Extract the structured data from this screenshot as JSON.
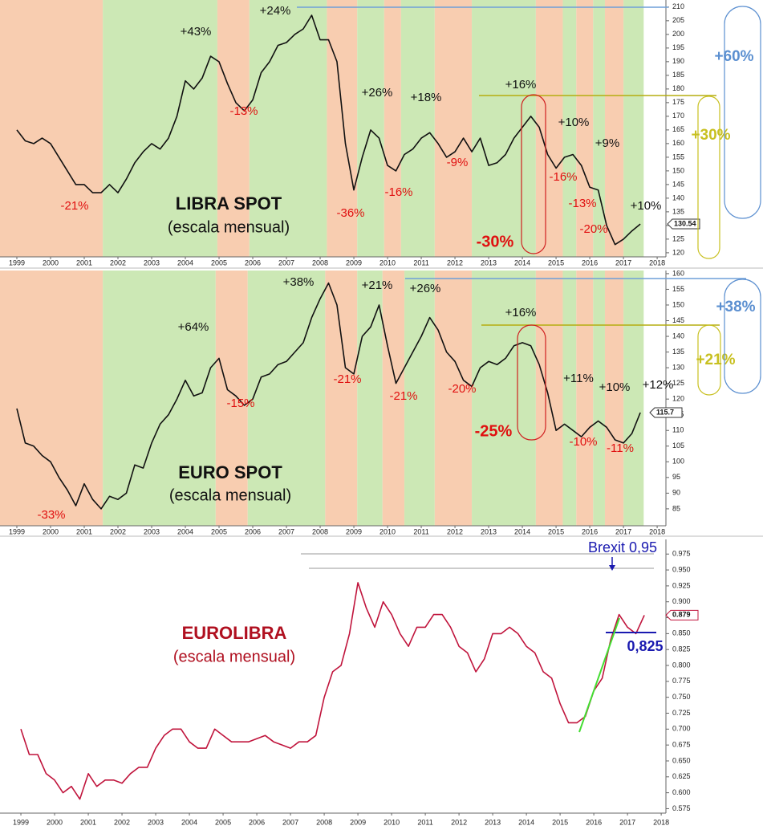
{
  "chart_data": [
    {
      "type": "line",
      "title": "LIBRA SPOT",
      "subtitle": "(escala mensual)",
      "x": [
        1999,
        1999.25,
        1999.5,
        1999.75,
        2000,
        2000.25,
        2000.5,
        2000.75,
        2001,
        2001.25,
        2001.5,
        2001.75,
        2002,
        2002.25,
        2002.5,
        2002.75,
        2003,
        2003.25,
        2003.5,
        2003.75,
        2004,
        2004.25,
        2004.5,
        2004.75,
        2005,
        2005.25,
        2005.5,
        2005.75,
        2006,
        2006.25,
        2006.5,
        2006.75,
        2007,
        2007.25,
        2007.5,
        2007.75,
        2008,
        2008.25,
        2008.5,
        2008.75,
        2009,
        2009.25,
        2009.5,
        2009.75,
        2010,
        2010.25,
        2010.5,
        2010.75,
        2011,
        2011.25,
        2011.5,
        2011.75,
        2012,
        2012.25,
        2012.5,
        2012.75,
        2013,
        2013.25,
        2013.5,
        2013.75,
        2014,
        2014.25,
        2014.5,
        2014.75,
        2015,
        2015.25,
        2015.5,
        2015.75,
        2016,
        2016.25,
        2016.5,
        2016.75,
        2017,
        2017.25,
        2017.5
      ],
      "series": [
        {
          "color": "#111111",
          "values": [
            165,
            161,
            160,
            162,
            160,
            155,
            150,
            145,
            145,
            142,
            142,
            145,
            142,
            147,
            153,
            157,
            160,
            158,
            162,
            170,
            183,
            180,
            184,
            192,
            190,
            182,
            175,
            172,
            176,
            186,
            190,
            196,
            197,
            200,
            202,
            207,
            198,
            198,
            190,
            160,
            143,
            155,
            165,
            162,
            152,
            150,
            156,
            158,
            162,
            164,
            160,
            155,
            157,
            162,
            157,
            162,
            152,
            153,
            156,
            162,
            166,
            170,
            166,
            156,
            151,
            155,
            156,
            152,
            144,
            143,
            130,
            123,
            125,
            128,
            130.54
          ]
        }
      ],
      "regions": [
        {
          "from": 1998.5,
          "to": 2001.55,
          "color": "#f8cdb0"
        },
        {
          "from": 2001.55,
          "to": 2004.95,
          "color": "#cce8b5"
        },
        {
          "from": 2004.95,
          "to": 2005.9,
          "color": "#f8cdb0"
        },
        {
          "from": 2005.9,
          "to": 2008.2,
          "color": "#cce8b5"
        },
        {
          "from": 2008.2,
          "to": 2009.1,
          "color": "#f8cdb0"
        },
        {
          "from": 2009.1,
          "to": 2009.9,
          "color": "#cce8b5"
        },
        {
          "from": 2009.9,
          "to": 2010.4,
          "color": "#f8cdb0"
        },
        {
          "from": 2010.4,
          "to": 2011.4,
          "color": "#cce8b5"
        },
        {
          "from": 2011.4,
          "to": 2012.5,
          "color": "#f8cdb0"
        },
        {
          "from": 2012.5,
          "to": 2014.4,
          "color": "#cce8b5"
        },
        {
          "from": 2014.4,
          "to": 2015.2,
          "color": "#f8cdb0"
        },
        {
          "from": 2015.2,
          "to": 2015.6,
          "color": "#cce8b5"
        },
        {
          "from": 2015.6,
          "to": 2016.1,
          "color": "#f8cdb0"
        },
        {
          "from": 2016.1,
          "to": 2016.45,
          "color": "#cce8b5"
        },
        {
          "from": 2016.45,
          "to": 2017.0,
          "color": "#f8cdb0"
        },
        {
          "from": 2017.0,
          "to": 2017.6,
          "color": "#cce8b5"
        }
      ],
      "xlim": [
        1998.5,
        2018.26
      ],
      "xticks": [
        1999,
        2000,
        2001,
        2002,
        2003,
        2004,
        2005,
        2006,
        2007,
        2008,
        2009,
        2010,
        2011,
        2012,
        2013,
        2014,
        2015,
        2016,
        2017,
        2018
      ],
      "ylim": [
        118.5,
        212.6
      ],
      "yticks": [
        120,
        125,
        130,
        135,
        140,
        145,
        150,
        155,
        160,
        165,
        170,
        175,
        180,
        185,
        190,
        195,
        200,
        205,
        210
      ],
      "annotations": [
        "+24%",
        "+43%",
        "-13%",
        "-21%",
        "-36%",
        "+26%",
        "+18%",
        "-16%",
        "-9%",
        "+16%",
        "-30%",
        "+10%",
        "-16%",
        "+9%",
        "-13%",
        "-20%",
        "+10%",
        "+60%",
        "+30%"
      ]
    },
    {
      "type": "line",
      "title": "EURO SPOT",
      "subtitle": "(escala mensual)",
      "x": [
        1999,
        1999.25,
        1999.5,
        1999.75,
        2000,
        2000.25,
        2000.5,
        2000.75,
        2001,
        2001.25,
        2001.5,
        2001.75,
        2002,
        2002.25,
        2002.5,
        2002.75,
        2003,
        2003.25,
        2003.5,
        2003.75,
        2004,
        2004.25,
        2004.5,
        2004.75,
        2005,
        2005.25,
        2005.5,
        2005.75,
        2006,
        2006.25,
        2006.5,
        2006.75,
        2007,
        2007.25,
        2007.5,
        2007.75,
        2008,
        2008.25,
        2008.5,
        2008.75,
        2009,
        2009.25,
        2009.5,
        2009.75,
        2010,
        2010.25,
        2010.5,
        2010.75,
        2011,
        2011.25,
        2011.5,
        2011.75,
        2012,
        2012.25,
        2012.5,
        2012.75,
        2013,
        2013.25,
        2013.5,
        2013.75,
        2014,
        2014.25,
        2014.5,
        2014.75,
        2015,
        2015.25,
        2015.5,
        2015.75,
        2016,
        2016.25,
        2016.5,
        2016.75,
        2017,
        2017.25,
        2017.5
      ],
      "series": [
        {
          "color": "#111111",
          "values": [
            117,
            106,
            105,
            102,
            100,
            95,
            91,
            86,
            93,
            88,
            85,
            89,
            88,
            90,
            99,
            98,
            106,
            112,
            115,
            120,
            126,
            121,
            122,
            130,
            133,
            123,
            121,
            118,
            120,
            127,
            128,
            131,
            132,
            135,
            138,
            146,
            152,
            157,
            150,
            130,
            128,
            140,
            143,
            150,
            137,
            125,
            130,
            135,
            140,
            146,
            142,
            135,
            132,
            126,
            124,
            130,
            132,
            131,
            133,
            137,
            138,
            137,
            131,
            122,
            110,
            112,
            110,
            108,
            111,
            113,
            111,
            107,
            106,
            109,
            115.7
          ]
        }
      ],
      "regions": [
        {
          "from": 1998.5,
          "to": 2001.55,
          "color": "#f8cdb0"
        },
        {
          "from": 2001.55,
          "to": 2004.9,
          "color": "#cce8b5"
        },
        {
          "from": 2004.9,
          "to": 2005.85,
          "color": "#f8cdb0"
        },
        {
          "from": 2005.85,
          "to": 2008.15,
          "color": "#cce8b5"
        },
        {
          "from": 2008.15,
          "to": 2009.1,
          "color": "#f8cdb0"
        },
        {
          "from": 2009.1,
          "to": 2009.85,
          "color": "#cce8b5"
        },
        {
          "from": 2009.85,
          "to": 2010.5,
          "color": "#f8cdb0"
        },
        {
          "from": 2010.5,
          "to": 2011.4,
          "color": "#cce8b5"
        },
        {
          "from": 2011.4,
          "to": 2012.5,
          "color": "#f8cdb0"
        },
        {
          "from": 2012.5,
          "to": 2014.4,
          "color": "#cce8b5"
        },
        {
          "from": 2014.4,
          "to": 2015.2,
          "color": "#f8cdb0"
        },
        {
          "from": 2015.2,
          "to": 2015.6,
          "color": "#cce8b5"
        },
        {
          "from": 2015.6,
          "to": 2016.1,
          "color": "#f8cdb0"
        },
        {
          "from": 2016.1,
          "to": 2016.45,
          "color": "#cce8b5"
        },
        {
          "from": 2016.45,
          "to": 2017.0,
          "color": "#f8cdb0"
        },
        {
          "from": 2017.0,
          "to": 2017.6,
          "color": "#cce8b5"
        }
      ],
      "xlim": [
        1998.5,
        2018.26
      ],
      "xticks": [
        1999,
        2000,
        2001,
        2002,
        2003,
        2004,
        2005,
        2006,
        2007,
        2008,
        2009,
        2010,
        2011,
        2012,
        2013,
        2014,
        2015,
        2016,
        2017,
        2018
      ],
      "ylim": [
        79.6,
        161
      ],
      "yticks": [
        85,
        90,
        95,
        100,
        105,
        110,
        115,
        120,
        125,
        130,
        135,
        140,
        145,
        150,
        155,
        160
      ],
      "annotations": [
        "+38%",
        "+21%",
        "+26%",
        "+64%",
        "-15%",
        "-33%",
        "-21%",
        "-21%",
        "-20%",
        "+16%",
        "-25%",
        "+11%",
        "+10%",
        "-10%",
        "-11%",
        "+12%",
        "+38%",
        "+21%"
      ]
    },
    {
      "type": "line",
      "title": "EUROLIBRA",
      "subtitle": "(escala mensual)",
      "x": [
        1999,
        1999.25,
        1999.5,
        1999.75,
        2000,
        2000.25,
        2000.5,
        2000.75,
        2001,
        2001.25,
        2001.5,
        2001.75,
        2002,
        2002.25,
        2002.5,
        2002.75,
        2003,
        2003.25,
        2003.5,
        2003.75,
        2004,
        2004.25,
        2004.5,
        2004.75,
        2005,
        2005.25,
        2005.5,
        2005.75,
        2006,
        2006.25,
        2006.5,
        2006.75,
        2007,
        2007.25,
        2007.5,
        2007.75,
        2008,
        2008.25,
        2008.5,
        2008.75,
        2009,
        2009.25,
        2009.5,
        2009.75,
        2010,
        2010.25,
        2010.5,
        2010.75,
        2011,
        2011.25,
        2011.5,
        2011.75,
        2012,
        2012.25,
        2012.5,
        2012.75,
        2013,
        2013.25,
        2013.5,
        2013.75,
        2014,
        2014.25,
        2014.5,
        2014.75,
        2015,
        2015.25,
        2015.5,
        2015.75,
        2016,
        2016.25,
        2016.5,
        2016.75,
        2017,
        2017.25,
        2017.5
      ],
      "series": [
        {
          "color": "#c0143c",
          "values": [
            0.7,
            0.66,
            0.66,
            0.63,
            0.62,
            0.6,
            0.61,
            0.59,
            0.63,
            0.61,
            0.62,
            0.62,
            0.615,
            0.63,
            0.64,
            0.64,
            0.67,
            0.69,
            0.7,
            0.7,
            0.68,
            0.67,
            0.67,
            0.7,
            0.69,
            0.68,
            0.68,
            0.68,
            0.685,
            0.69,
            0.68,
            0.675,
            0.67,
            0.68,
            0.68,
            0.69,
            0.75,
            0.79,
            0.8,
            0.85,
            0.93,
            0.89,
            0.86,
            0.9,
            0.88,
            0.85,
            0.83,
            0.86,
            0.86,
            0.88,
            0.88,
            0.86,
            0.83,
            0.82,
            0.79,
            0.81,
            0.85,
            0.85,
            0.86,
            0.85,
            0.83,
            0.82,
            0.79,
            0.78,
            0.74,
            0.71,
            0.71,
            0.72,
            0.76,
            0.78,
            0.84,
            0.88,
            0.86,
            0.85,
            0.879
          ]
        }
      ],
      "xlim": [
        1998.38,
        2018.14
      ],
      "xticks": [
        1999,
        2000,
        2001,
        2002,
        2003,
        2004,
        2005,
        2006,
        2007,
        2008,
        2009,
        2010,
        2011,
        2012,
        2013,
        2014,
        2015,
        2016,
        2017,
        2018
      ],
      "ylim": [
        0.568,
        0.998
      ],
      "yticks": [
        0.575,
        {
          "value": 0.6,
          "label": "0.600"
        },
        0.625,
        {
          "value": 0.65,
          "label": "0.650"
        },
        0.675,
        {
          "value": 0.7,
          "label": "0.700"
        },
        0.725,
        {
          "value": 0.75,
          "label": "0.750"
        },
        0.775,
        {
          "value": 0.8,
          "label": "0.800"
        },
        0.825,
        {
          "value": 0.85,
          "label": "0.850"
        },
        0.875,
        {
          "value": 0.9,
          "label": "0.900"
        },
        0.925,
        {
          "value": 0.95,
          "label": "0.950"
        },
        0.975
      ],
      "annotations": [
        "Brexit 0,95",
        "0,825"
      ]
    }
  ]
}
